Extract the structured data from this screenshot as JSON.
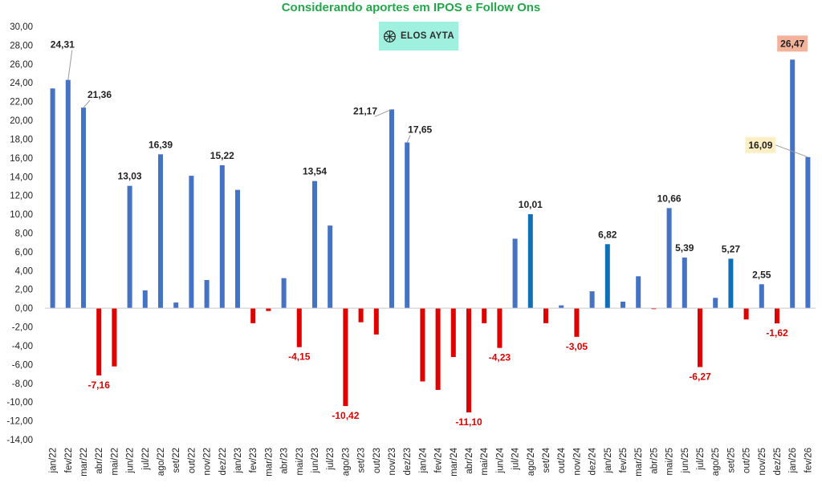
{
  "title": "Considerando aportes em IPOS e Follow Ons",
  "logo": {
    "text": "ELOS AYTA",
    "icon": "globe-logo-icon"
  },
  "colors": {
    "positive": "#4472c4",
    "highlight": "#0f6fb7",
    "negative": "#e00000",
    "title": "#22a84a",
    "label_peach": "#f4b29a",
    "label_cream": "#fdefc4"
  },
  "chart_data": {
    "type": "bar",
    "title": "Considerando aportes em IPOS e Follow Ons",
    "xlabel": "",
    "ylabel": "",
    "ylim": [
      -14,
      30
    ],
    "yticks": [
      "30,00",
      "28,00",
      "26,00",
      "24,00",
      "22,00",
      "20,00",
      "18,00",
      "16,00",
      "14,00",
      "12,00",
      "10,00",
      "8,00",
      "6,00",
      "4,00",
      "2,00",
      "0,00",
      "-2,00",
      "-4,00",
      "-6,00",
      "-8,00",
      "-10,00",
      "-12,00",
      "-14,00"
    ],
    "categories": [
      "jan/22",
      "fev/22",
      "mar/22",
      "abr/22",
      "mai/22",
      "jun/22",
      "jul/22",
      "ago/22",
      "set/22",
      "out/22",
      "nov/22",
      "dez/22",
      "jan/23",
      "fev/23",
      "mar/23",
      "abr/23",
      "mai/23",
      "jun/23",
      "jul/23",
      "ago/23",
      "set/23",
      "out/23",
      "nov/23",
      "dez/23",
      "jan/24",
      "fev/24",
      "mar/24",
      "abr/24",
      "mai/24",
      "jun/24",
      "jul/24",
      "ago/24",
      "set/24",
      "out/24",
      "nov/24",
      "dez/24",
      "jan/25",
      "fev/25",
      "mar/25",
      "abr/25",
      "mai/25",
      "jun/25",
      "jul/25",
      "ago/25",
      "set/25",
      "out/25",
      "nov/25",
      "dez/25",
      "jan/26",
      "fev/26"
    ],
    "values": [
      23.4,
      24.31,
      21.36,
      -7.16,
      -6.2,
      13.03,
      1.9,
      16.39,
      0.6,
      14.1,
      3.0,
      15.22,
      12.6,
      -1.6,
      -0.3,
      3.2,
      -4.15,
      13.54,
      8.8,
      -10.42,
      -1.5,
      -2.8,
      21.17,
      17.65,
      -7.8,
      -8.7,
      -5.2,
      -11.1,
      -1.6,
      -4.23,
      7.4,
      10.01,
      -1.6,
      0.3,
      -3.05,
      1.8,
      6.82,
      0.7,
      3.4,
      -0.1,
      10.66,
      5.39,
      -6.27,
      1.1,
      5.27,
      -1.2,
      2.55,
      -1.62,
      26.47,
      16.09
    ],
    "highlighted": [
      "ago/24",
      "jan/25",
      "set/25"
    ],
    "data_labels": [
      {
        "category": "fev/22",
        "text": "24,31"
      },
      {
        "category": "mar/22",
        "text": "21,36"
      },
      {
        "category": "abr/22",
        "text": "-7,16"
      },
      {
        "category": "jun/22",
        "text": "13,03"
      },
      {
        "category": "ago/22",
        "text": "16,39"
      },
      {
        "category": "dez/22",
        "text": "15,22"
      },
      {
        "category": "mai/23",
        "text": "-4,15"
      },
      {
        "category": "jun/23",
        "text": "13,54"
      },
      {
        "category": "ago/23",
        "text": "-10,42"
      },
      {
        "category": "nov/23",
        "text": "21,17"
      },
      {
        "category": "dez/23",
        "text": "17,65"
      },
      {
        "category": "abr/24",
        "text": "-11,10"
      },
      {
        "category": "jun/24",
        "text": "-4,23"
      },
      {
        "category": "ago/24",
        "text": "10,01"
      },
      {
        "category": "nov/24",
        "text": "-3,05"
      },
      {
        "category": "jan/25",
        "text": "6,82"
      },
      {
        "category": "mai/25",
        "text": "10,66"
      },
      {
        "category": "jun/25",
        "text": "5,39"
      },
      {
        "category": "jul/25",
        "text": "-6,27"
      },
      {
        "category": "set/25",
        "text": "5,27"
      },
      {
        "category": "nov/25",
        "text": "2,55"
      },
      {
        "category": "dez/25",
        "text": "-1,62"
      },
      {
        "category": "jan/26",
        "text": "26,47",
        "boxed": "peach"
      },
      {
        "category": "fev/26",
        "text": "16,09",
        "boxed": "cream"
      }
    ],
    "grid": false,
    "legend": "none"
  }
}
